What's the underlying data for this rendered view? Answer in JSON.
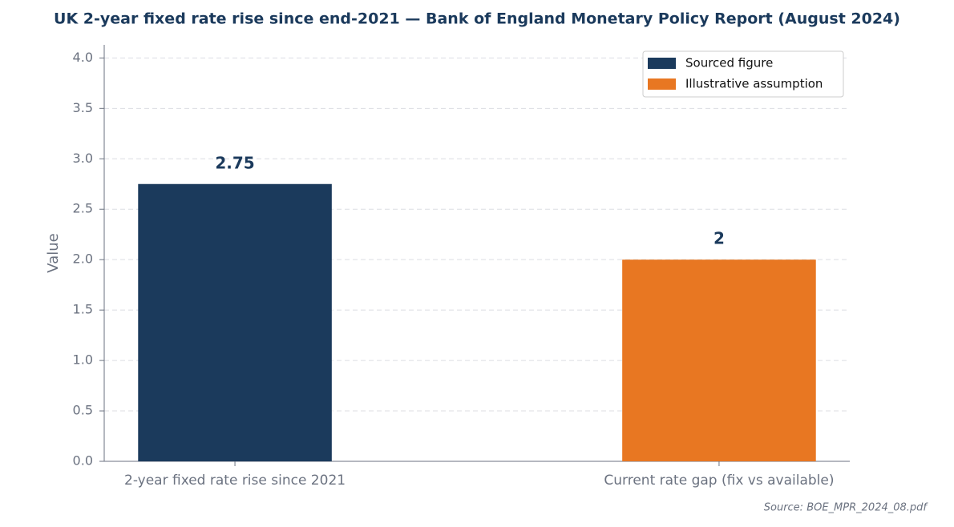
{
  "chart_data": {
    "type": "bar",
    "title": "UK 2-year fixed rate rise since end-2021 — Bank of England Monetary Policy Report (August 2024)",
    "y_label": "Value",
    "source": "Source: BOE_MPR_2024_08.pdf",
    "categories": [
      "2-year fixed rate rise since 2021",
      "Current rate gap (fix vs available)"
    ],
    "series": [
      {
        "name": "Sourced figure",
        "color": "#1b3a5c",
        "values": [
          2.75,
          null
        ]
      },
      {
        "name": "Illustrative assumption",
        "color": "#e87722",
        "values": [
          null,
          2
        ]
      }
    ],
    "ylim": [
      0,
      4.13
    ],
    "yticks": [
      {
        "value": 0,
        "label": "0.0"
      },
      0.5,
      {
        "value": 1,
        "label": "1.0"
      },
      1.5,
      {
        "value": 2,
        "label": "2.0"
      },
      2.5,
      {
        "value": 3,
        "label": "3.0"
      },
      3.5,
      {
        "value": 4,
        "label": "4.0"
      }
    ],
    "grid": true,
    "legend": "upper right"
  }
}
